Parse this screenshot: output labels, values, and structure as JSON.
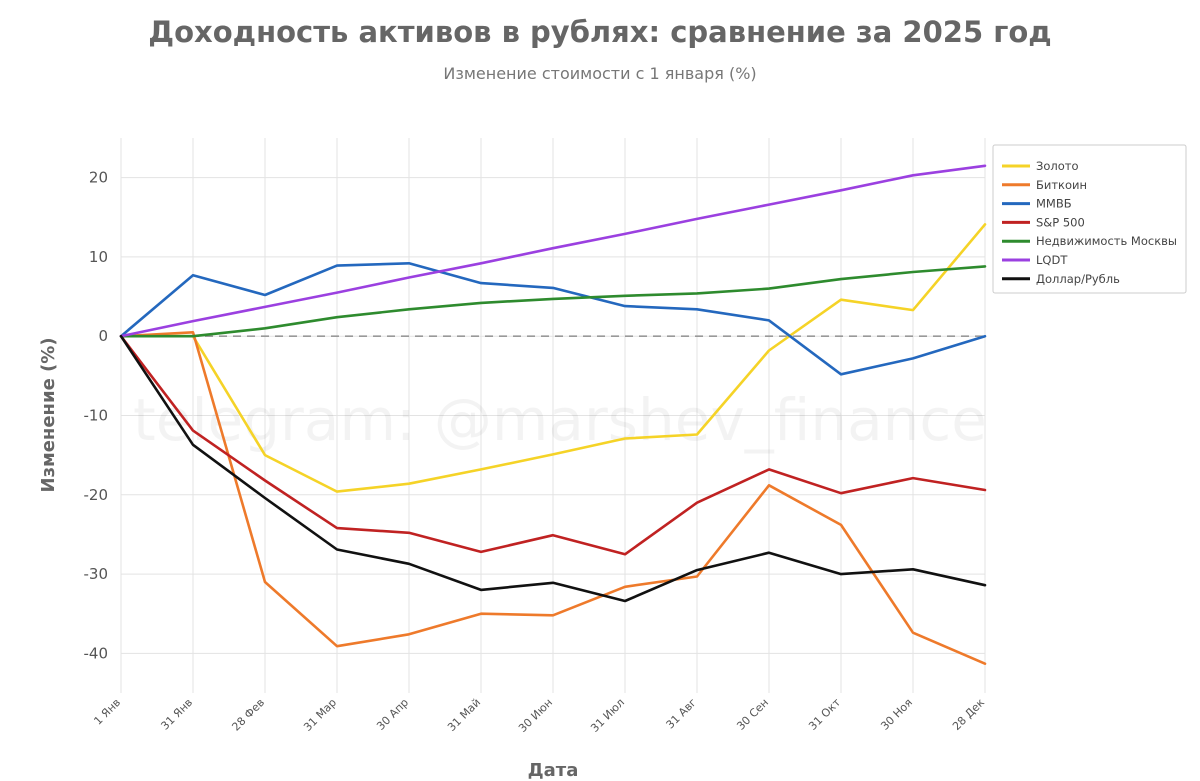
{
  "watermark": "telegram: @marshev_finance",
  "chart_data": {
    "type": "line",
    "title": "Доходность активов в рублях: сравнение за 2025 год",
    "subtitle": "Изменение стоимости с 1 января (%)",
    "xlabel": "Дата",
    "ylabel": "Изменение (%)",
    "categories": [
      "1 Янв",
      "31 Янв",
      "28 Фев",
      "31 Мар",
      "30 Апр",
      "31 Май",
      "30 Июн",
      "31 Июл",
      "31 Авг",
      "30 Сен",
      "31 Окт",
      "30 Ноя",
      "28 Дек"
    ],
    "ylim": [
      -45,
      25
    ],
    "yticks": [
      20,
      10,
      0,
      -10,
      -20,
      -30,
      -40
    ],
    "grid": true,
    "zero_line": true,
    "legend_position": "top-right",
    "series": [
      {
        "name": "Золото",
        "color": "#F5D327",
        "values": [
          0,
          0,
          -15,
          -19.6,
          -18.6,
          -16.8,
          -14.9,
          -12.9,
          -12.4,
          -1.8,
          4.6,
          3.3,
          14.1
        ]
      },
      {
        "name": "Биткоин",
        "color": "#EE7A2B",
        "values": [
          0,
          0.5,
          -31,
          -39.1,
          -37.6,
          -35,
          -35.2,
          -31.6,
          -30.3,
          -18.8,
          -23.8,
          -37.4,
          -41.3
        ]
      },
      {
        "name": "ММВБ",
        "color": "#2468BE",
        "values": [
          0,
          7.7,
          5.2,
          8.9,
          9.2,
          6.7,
          6.1,
          3.8,
          3.4,
          2,
          -4.8,
          -2.8,
          0
        ]
      },
      {
        "name": "S&P 500",
        "color": "#C02222",
        "values": [
          0,
          -11.9,
          -18.2,
          -24.2,
          -24.8,
          -27.2,
          -25.1,
          -27.5,
          -21,
          -16.8,
          -19.8,
          -17.9,
          -19.4
        ]
      },
      {
        "name": "Недвижимость Москвы",
        "color": "#2E8B2E",
        "values": [
          0,
          0,
          1,
          2.4,
          3.4,
          4.2,
          4.7,
          5.1,
          5.4,
          6,
          7.2,
          8.1,
          8.8
        ]
      },
      {
        "name": "LQDT",
        "color": "#9B40E0",
        "values": [
          0,
          1.9,
          3.7,
          5.5,
          7.4,
          9.2,
          11.1,
          12.9,
          14.8,
          16.6,
          18.4,
          20.3,
          21.5
        ]
      },
      {
        "name": "Доллар/Рубль",
        "color": "#111111",
        "values": [
          0,
          -13.7,
          -20.4,
          -26.9,
          -28.7,
          -32,
          -31.1,
          -33.4,
          -29.5,
          -27.3,
          -30,
          -29.4,
          -31.4
        ]
      }
    ]
  }
}
